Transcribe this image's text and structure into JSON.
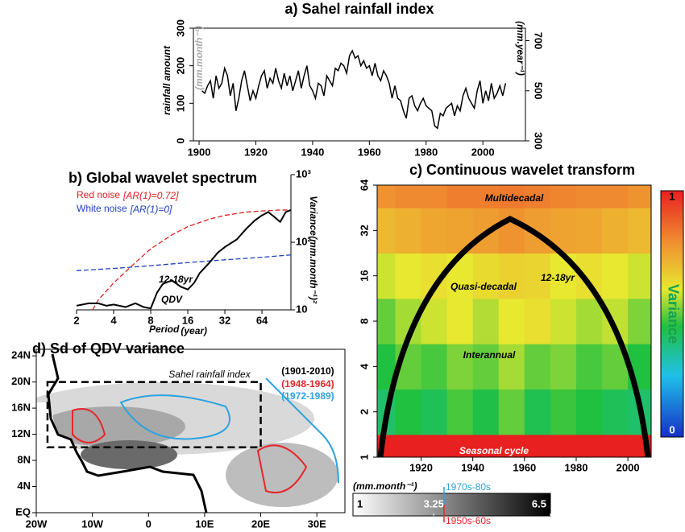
{
  "chart_data": [
    {
      "type": "line",
      "title": "a) Sahel rainfall index",
      "ylabel": "rainfall amount",
      "ylabel_unit": "(mm.month⁻¹)",
      "y2label_unit": "(mm.year⁻¹)",
      "x": [
        1901,
        1902,
        1903,
        1904,
        1905,
        1906,
        1907,
        1908,
        1909,
        1910,
        1911,
        1912,
        1913,
        1914,
        1915,
        1916,
        1917,
        1918,
        1919,
        1920,
        1921,
        1922,
        1923,
        1924,
        1925,
        1926,
        1927,
        1928,
        1929,
        1930,
        1931,
        1932,
        1933,
        1934,
        1935,
        1936,
        1937,
        1938,
        1939,
        1940,
        1941,
        1942,
        1943,
        1944,
        1945,
        1946,
        1947,
        1948,
        1949,
        1950,
        1951,
        1952,
        1953,
        1954,
        1955,
        1956,
        1957,
        1958,
        1959,
        1960,
        1961,
        1962,
        1963,
        1964,
        1965,
        1966,
        1967,
        1968,
        1969,
        1970,
        1971,
        1972,
        1973,
        1974,
        1975,
        1976,
        1977,
        1978,
        1979,
        1980,
        1981,
        1982,
        1983,
        1984,
        1985,
        1986,
        1987,
        1988,
        1989,
        1990,
        1991,
        1992,
        1993,
        1994,
        1995,
        1996,
        1997,
        1998,
        1999,
        2000,
        2001,
        2002,
        2003,
        2004,
        2005,
        2006,
        2007,
        2008
      ],
      "series": [
        {
          "color": "#000000",
          "axis": "y2",
          "values": [
            500,
            490,
            520,
            540,
            470,
            560,
            510,
            530,
            590,
            560,
            480,
            530,
            420,
            470,
            540,
            580,
            520,
            460,
            500,
            470,
            520,
            560,
            580,
            510,
            550,
            530,
            590,
            540,
            510,
            570,
            520,
            560,
            500,
            540,
            580,
            510,
            560,
            600,
            520,
            500,
            470,
            530,
            520,
            480,
            560,
            540,
            520,
            590,
            580,
            610,
            600,
            570,
            640,
            660,
            630,
            640,
            600,
            620,
            590,
            600,
            560,
            610,
            560,
            540,
            580,
            560,
            530,
            470,
            520,
            470,
            460,
            420,
            390,
            470,
            480,
            440,
            420,
            450,
            470,
            440,
            430,
            420,
            360,
            350,
            410,
            400,
            430,
            440,
            450,
            400,
            440,
            420,
            480,
            510,
            470,
            450,
            430,
            500,
            540,
            450,
            500,
            460,
            530,
            470,
            490,
            520,
            480,
            530
          ]
        }
      ],
      "xlim": [
        1898,
        2015
      ],
      "xticks": [
        1900,
        1920,
        1940,
        1960,
        1980,
        2000
      ],
      "ylim": [
        0,
        300
      ],
      "yticks": [
        0,
        100,
        200,
        300
      ],
      "y2lim": [
        300,
        750
      ],
      "y2ticks": [
        300,
        500,
        700
      ]
    },
    {
      "type": "line",
      "title": "b) Global wavelet spectrum",
      "log_x": true,
      "log_y": true,
      "xlabel": "Period",
      "xlabel_unit": "(year)",
      "ylabel": "Variance",
      "ylabel_unit": "(mm.month⁻¹)²",
      "xlim": [
        2,
        110
      ],
      "xticks": [
        2,
        4,
        8,
        16,
        32,
        64
      ],
      "ylim": [
        10,
        1000
      ],
      "yticks": [
        10,
        {
          "value": 100,
          "label": "10²"
        },
        {
          "value": 1000,
          "label": "10³"
        }
      ],
      "series": [
        {
          "name": "Red noise",
          "label": "[AR(1)=0.72]",
          "color": "#e02020",
          "dashed": true,
          "x": [
            2.7,
            3,
            4,
            6,
            8,
            12,
            16,
            24,
            32,
            48,
            64,
            90,
            110
          ],
          "values": [
            10,
            14,
            25,
            50,
            80,
            130,
            170,
            220,
            250,
            280,
            290,
            300,
            300
          ]
        },
        {
          "name": "White noise",
          "label": "[AR(1)=0]",
          "color": "#2040c0",
          "dashed": true,
          "x": [
            2,
            4,
            8,
            16,
            32,
            64,
            110
          ],
          "values": [
            38,
            41,
            45,
            50,
            55,
            60,
            65
          ]
        },
        {
          "color": "#000000",
          "x": [
            2,
            2.5,
            3,
            3.5,
            4,
            5,
            6,
            7,
            8,
            9,
            10,
            11,
            12,
            14,
            16,
            18,
            20,
            24,
            28,
            32,
            40,
            48,
            56,
            64,
            72,
            80,
            90,
            100,
            110
          ],
          "values": [
            11.5,
            12.5,
            12.5,
            11.5,
            12,
            11,
            12.5,
            11,
            10.5,
            18,
            24,
            26,
            27,
            22,
            20,
            25,
            35,
            50,
            70,
            85,
            110,
            160,
            210,
            250,
            280,
            240,
            200,
            280,
            300
          ]
        }
      ],
      "annotations": [
        "12-18yr",
        "QDV"
      ]
    },
    {
      "type": "heatmap",
      "title": "c) Continuous wavelet transform",
      "log_y": true,
      "x": [
        1905,
        1915,
        1925,
        1935,
        1945,
        1955,
        1965,
        1975,
        1985,
        1995,
        2005
      ],
      "y": [
        1,
        2,
        4,
        8,
        16,
        32,
        64
      ],
      "z": [
        [
          1,
          1,
          1,
          1,
          1,
          1,
          1,
          1,
          1,
          1,
          1
        ],
        [
          0.4,
          0.45,
          0.42,
          0.48,
          0.44,
          0.5,
          0.43,
          0.47,
          0.45,
          0.42,
          0.4
        ],
        [
          0.45,
          0.5,
          0.48,
          0.52,
          0.5,
          0.55,
          0.5,
          0.52,
          0.48,
          0.5,
          0.45
        ],
        [
          0.5,
          0.55,
          0.58,
          0.6,
          0.56,
          0.6,
          0.62,
          0.58,
          0.55,
          0.57,
          0.52
        ],
        [
          0.58,
          0.6,
          0.62,
          0.6,
          0.63,
          0.65,
          0.64,
          0.6,
          0.62,
          0.6,
          0.58
        ],
        [
          0.7,
          0.72,
          0.74,
          0.75,
          0.76,
          0.78,
          0.76,
          0.75,
          0.74,
          0.72,
          0.7
        ],
        [
          0.78,
          0.8,
          0.8,
          0.82,
          0.82,
          0.83,
          0.82,
          0.81,
          0.8,
          0.8,
          0.78
        ]
      ],
      "xlim": [
        1903,
        2009
      ],
      "xticks": [
        1920,
        1940,
        1960,
        1980,
        2000
      ],
      "ylim": [
        1,
        64
      ],
      "yticks": [
        1,
        2,
        4,
        8,
        16,
        32,
        64
      ],
      "colorbar": {
        "label": "Variance",
        "lim": [
          0,
          1
        ],
        "ticks": [
          0,
          1
        ]
      },
      "annotations": [
        "Multidecadal",
        "Quasi-decadal",
        "12-18yr",
        "Interannual",
        "Seasonal cycle"
      ]
    },
    {
      "type": "map",
      "title": "d) Sd of QDV variance",
      "xlim": [
        -20,
        35
      ],
      "xticks": [
        {
          "value": -20,
          "label": "20W"
        },
        {
          "value": -10,
          "label": "10W"
        },
        0,
        {
          "value": 10,
          "label": "10E"
        },
        {
          "value": 20,
          "label": "20E"
        },
        {
          "value": 30,
          "label": "30E"
        }
      ],
      "ylim": [
        0,
        25
      ],
      "yticks": [
        {
          "value": 0,
          "label": "EQ"
        },
        {
          "value": 4,
          "label": "4N"
        },
        {
          "value": 8,
          "label": "8N"
        },
        {
          "value": 12,
          "label": "12N"
        },
        {
          "value": 16,
          "label": "16N"
        },
        {
          "value": 20,
          "label": "20N"
        },
        {
          "value": 24,
          "label": "24N"
        }
      ],
      "box": {
        "label": "Sahel rainfall index",
        "lon": [
          -18,
          20
        ],
        "lat": [
          10,
          20
        ]
      },
      "legend": [
        {
          "text": "(1901-2010)",
          "color": "#000000"
        },
        {
          "text": "(1948-1964)",
          "color": "#e8262b"
        },
        {
          "text": "(1972-1989)",
          "color": "#2ba3e0"
        }
      ],
      "colorbar": {
        "unit": "(mm.month⁻¹)",
        "lim": [
          1,
          6.5
        ],
        "ticks": [
          1,
          3.25,
          6.5
        ],
        "markers": [
          {
            "label": "1970s-80s",
            "color": "#2ba3e0"
          },
          {
            "label": "1950s-60s",
            "color": "#e8262b"
          }
        ]
      }
    }
  ]
}
